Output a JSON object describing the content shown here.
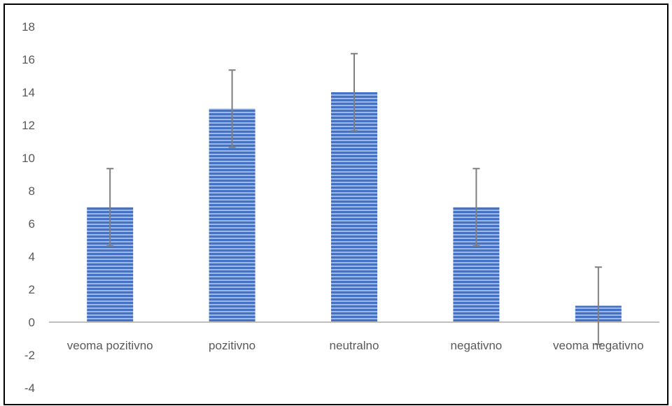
{
  "chart_data": {
    "type": "bar",
    "categories": [
      "veoma pozitivno",
      "pozitivno",
      "neutralno",
      "negativno",
      "veoma negativno"
    ],
    "values": [
      7,
      13,
      14,
      7,
      1
    ],
    "error_bars": [
      2.35,
      2.35,
      2.35,
      2.35,
      2.35
    ],
    "title": "",
    "xlabel": "",
    "ylabel": "",
    "ylim": [
      -4,
      18
    ],
    "yticks": [
      -4,
      -2,
      0,
      2,
      4,
      6,
      8,
      10,
      12,
      14,
      16,
      18
    ],
    "grid": false,
    "legend": "none",
    "bar_color": "#4472C4",
    "bar_stripe_color": "#9DB7E8",
    "error_bar_color": "#7F7F7F",
    "axis_color": "#BFBFBF",
    "tick_text_color": "#595959"
  }
}
